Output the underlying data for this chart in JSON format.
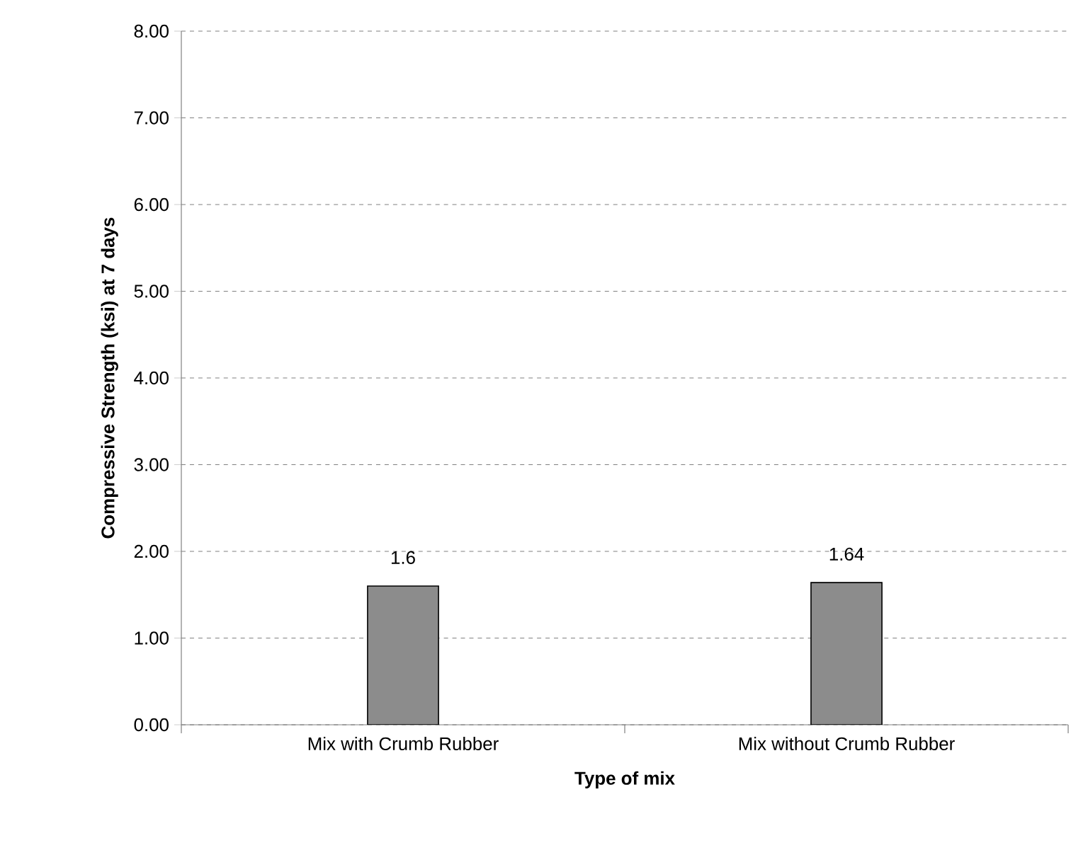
{
  "chart_data": {
    "type": "bar",
    "xlabel": "Type of mix",
    "ylabel": "Compressive Strength (ksi) at 7 days",
    "categories": [
      "Mix with Crumb Rubber",
      "Mix without Crumb Rubber"
    ],
    "values": [
      1.6,
      1.64
    ],
    "value_labels": [
      "1.6",
      "1.64"
    ],
    "color": "#8c8c8c",
    "ylim": [
      0,
      8
    ],
    "yticks": [
      {
        "value": 0,
        "label": "0.00"
      },
      {
        "value": 1,
        "label": "1.00"
      },
      {
        "value": 2,
        "label": "2.00"
      },
      {
        "value": 3,
        "label": "3.00"
      },
      {
        "value": 4,
        "label": "4.00"
      },
      {
        "value": 5,
        "label": "5.00"
      },
      {
        "value": 6,
        "label": "6.00"
      },
      {
        "value": 7,
        "label": "7.00"
      },
      {
        "value": 8,
        "label": "8.00"
      }
    ],
    "grid": "y"
  }
}
